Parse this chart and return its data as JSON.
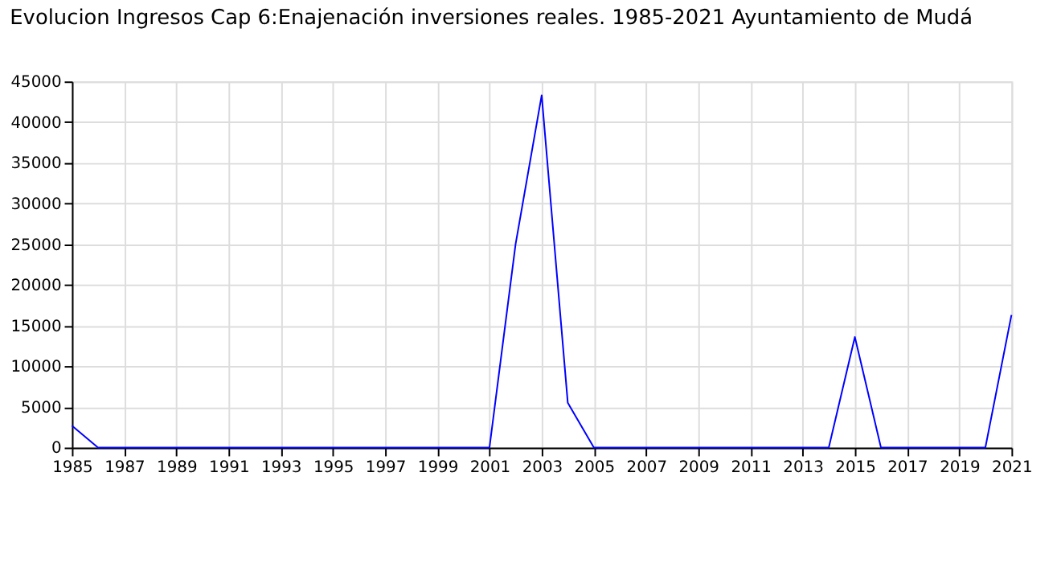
{
  "chart_data": {
    "type": "line",
    "title": "Evolucion Ingresos Cap 6:Enajenación inversiones reales. 1985-2021 Ayuntamiento de Mudá",
    "x": [
      1985,
      1986,
      1987,
      1988,
      1989,
      1990,
      1991,
      1992,
      1993,
      1994,
      1995,
      1996,
      1997,
      1998,
      1999,
      2000,
      2001,
      2002,
      2003,
      2004,
      2005,
      2006,
      2007,
      2008,
      2009,
      2010,
      2011,
      2012,
      2013,
      2014,
      2015,
      2016,
      2017,
      2018,
      2019,
      2020,
      2021
    ],
    "series": [
      {
        "color": "#0000ff",
        "values": [
          2700,
          0,
          0,
          0,
          0,
          0,
          0,
          0,
          0,
          0,
          0,
          0,
          0,
          0,
          0,
          0,
          0,
          25000,
          43300,
          5500,
          0,
          0,
          0,
          0,
          0,
          0,
          0,
          0,
          0,
          0,
          13600,
          0,
          0,
          0,
          0,
          0,
          16300
        ]
      }
    ],
    "xlim": [
      1985,
      2021
    ],
    "xticks": [
      1985,
      1987,
      1989,
      1991,
      1993,
      1995,
      1997,
      1999,
      2001,
      2003,
      2005,
      2007,
      2009,
      2011,
      2013,
      2015,
      2017,
      2019,
      2021
    ],
    "ylim": [
      0,
      45000
    ],
    "yticks": [
      0,
      5000,
      10000,
      15000,
      20000,
      25000,
      30000,
      35000,
      40000,
      45000
    ],
    "grid": true,
    "marker": "none",
    "line_style": "solid",
    "legend": false
  }
}
